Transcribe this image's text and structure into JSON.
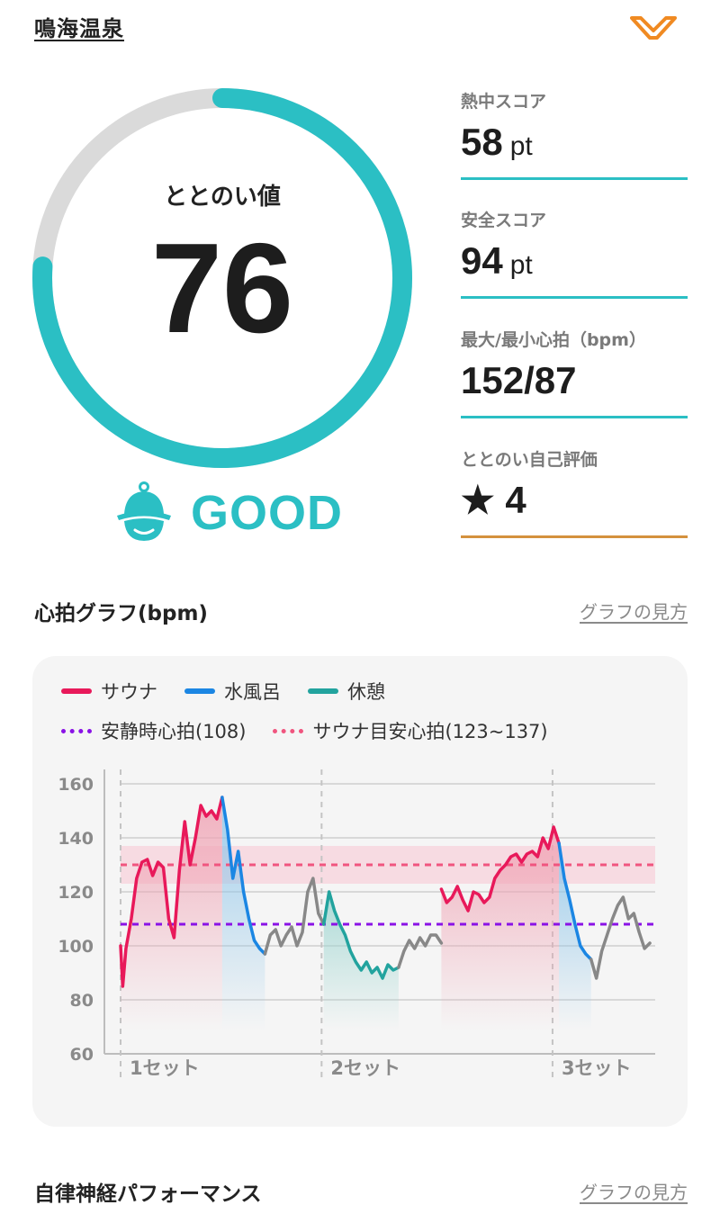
{
  "header": {
    "facility_name": "鳴海温泉",
    "logo_icon": "brand-v-logo-icon",
    "logo_color": "#f08a22"
  },
  "score": {
    "label": "ととのい値",
    "value": 76,
    "max": 100,
    "rating": "GOOD",
    "rating_icon": "sauna-hat-face-icon",
    "color": "#2bbfc4",
    "track_color": "#dadada"
  },
  "metrics": [
    {
      "label": "熱中スコア",
      "value": "58",
      "unit": "pt"
    },
    {
      "label": "安全スコア",
      "value": "94",
      "unit": "pt"
    },
    {
      "label": "最大/最小心拍（bpm）",
      "value": "152/87",
      "unit": ""
    },
    {
      "label": "ととのい自己評価",
      "value": "★ 4",
      "unit": ""
    }
  ],
  "heart_section": {
    "title": "心拍グラフ(bpm)",
    "help_link": "グラフの見方"
  },
  "nerve_section": {
    "title": "自律神経パフォーマンス",
    "help_link": "グラフの見方"
  },
  "chart_data": {
    "type": "line",
    "ylim": [
      60,
      160
    ],
    "yticks": [
      60,
      80,
      100,
      120,
      140,
      160
    ],
    "xlim": [
      0,
      100
    ],
    "grid": true,
    "legend_position": "top-left",
    "legend": [
      {
        "name": "サウナ",
        "color": "#e8195a",
        "style": "solid"
      },
      {
        "name": "水風呂",
        "color": "#1b86e3",
        "style": "solid"
      },
      {
        "name": "休憩",
        "color": "#22a39e",
        "style": "solid"
      }
    ],
    "reference_lines": [
      {
        "name": "安静時心拍(108)",
        "value": 108,
        "color": "#8a12e6"
      },
      {
        "name": "サウナ目安心拍(123~137)",
        "value": 130,
        "band": [
          123,
          137
        ],
        "color": "#f0557f"
      }
    ],
    "set_markers": [
      {
        "label": "1セット",
        "x": 0
      },
      {
        "label": "2セット",
        "x": 37.6
      },
      {
        "label": "3セット",
        "x": 80.8
      }
    ],
    "segments": [
      {
        "phase": "sauna",
        "color": "#e8195a",
        "fill": "#f0a3b4",
        "points": [
          [
            0,
            100
          ],
          [
            0.4,
            85
          ],
          [
            1,
            99
          ],
          [
            2,
            110
          ],
          [
            3,
            125
          ],
          [
            4,
            131
          ],
          [
            5,
            132
          ],
          [
            6,
            126
          ],
          [
            7,
            131
          ],
          [
            8,
            129
          ],
          [
            9,
            110
          ],
          [
            10,
            103
          ],
          [
            11,
            128
          ],
          [
            12,
            146
          ],
          [
            13,
            130
          ],
          [
            14,
            140
          ],
          [
            15,
            152
          ],
          [
            16,
            148
          ],
          [
            17,
            150
          ],
          [
            18,
            147
          ],
          [
            19,
            155
          ]
        ]
      },
      {
        "phase": "cold",
        "color": "#1b86e3",
        "fill": "#8ec6ea",
        "points": [
          [
            19,
            155
          ],
          [
            20,
            143
          ],
          [
            21,
            125
          ],
          [
            22,
            135
          ],
          [
            23,
            120
          ],
          [
            24,
            110
          ],
          [
            25,
            102
          ],
          [
            26,
            99
          ],
          [
            27,
            97
          ]
        ]
      },
      {
        "phase": "transition",
        "color": "#888888",
        "points": [
          [
            27,
            97
          ],
          [
            28,
            104
          ],
          [
            29,
            106
          ],
          [
            30,
            100
          ],
          [
            31,
            104
          ],
          [
            32,
            107
          ],
          [
            33,
            100
          ],
          [
            34,
            105
          ],
          [
            35,
            120
          ],
          [
            36,
            125
          ],
          [
            37,
            112
          ],
          [
            38,
            108
          ]
        ]
      },
      {
        "phase": "rest",
        "color": "#22a39e",
        "fill": "#9fd6d1",
        "points": [
          [
            38,
            108
          ],
          [
            39,
            120
          ],
          [
            40,
            113
          ],
          [
            41,
            108
          ],
          [
            42,
            104
          ],
          [
            43,
            98
          ],
          [
            44,
            94
          ],
          [
            45,
            91
          ],
          [
            46,
            94
          ],
          [
            47,
            90
          ],
          [
            48,
            92
          ],
          [
            49,
            88
          ],
          [
            50,
            93
          ],
          [
            51,
            91
          ],
          [
            52,
            92
          ]
        ]
      },
      {
        "phase": "transition",
        "color": "#888888",
        "points": [
          [
            52,
            92
          ],
          [
            53,
            98
          ],
          [
            54,
            102
          ],
          [
            55,
            99
          ],
          [
            56,
            103
          ],
          [
            57,
            100
          ],
          [
            58,
            104
          ],
          [
            59,
            104
          ],
          [
            60,
            101
          ]
        ]
      },
      {
        "phase": "sauna",
        "color": "#e8195a",
        "fill": "#f0a3b4",
        "points": [
          [
            60,
            121
          ],
          [
            61,
            116
          ],
          [
            62,
            118
          ],
          [
            63,
            122
          ],
          [
            64,
            117
          ],
          [
            65,
            113
          ],
          [
            66,
            120
          ],
          [
            67,
            119
          ],
          [
            68,
            116
          ],
          [
            69,
            118
          ],
          [
            70,
            125
          ],
          [
            71,
            128
          ],
          [
            72,
            130
          ],
          [
            73,
            133
          ],
          [
            74,
            134
          ],
          [
            75,
            131
          ],
          [
            76,
            134
          ],
          [
            77,
            135
          ],
          [
            78,
            133
          ],
          [
            79,
            140
          ],
          [
            80,
            136
          ],
          [
            81,
            144
          ],
          [
            82,
            138
          ]
        ]
      },
      {
        "phase": "cold",
        "color": "#1b86e3",
        "fill": "#8ec6ea",
        "points": [
          [
            82,
            138
          ],
          [
            83,
            125
          ],
          [
            84,
            117
          ],
          [
            85,
            108
          ],
          [
            86,
            100
          ],
          [
            87,
            97
          ],
          [
            88,
            95
          ]
        ]
      },
      {
        "phase": "transition",
        "color": "#888888",
        "points": [
          [
            88,
            95
          ],
          [
            89,
            88
          ],
          [
            90,
            98
          ],
          [
            91,
            104
          ],
          [
            92,
            110
          ],
          [
            93,
            115
          ],
          [
            94,
            118
          ],
          [
            95,
            110
          ],
          [
            96,
            112
          ],
          [
            97,
            105
          ],
          [
            98,
            99
          ],
          [
            99,
            101
          ]
        ]
      }
    ]
  }
}
